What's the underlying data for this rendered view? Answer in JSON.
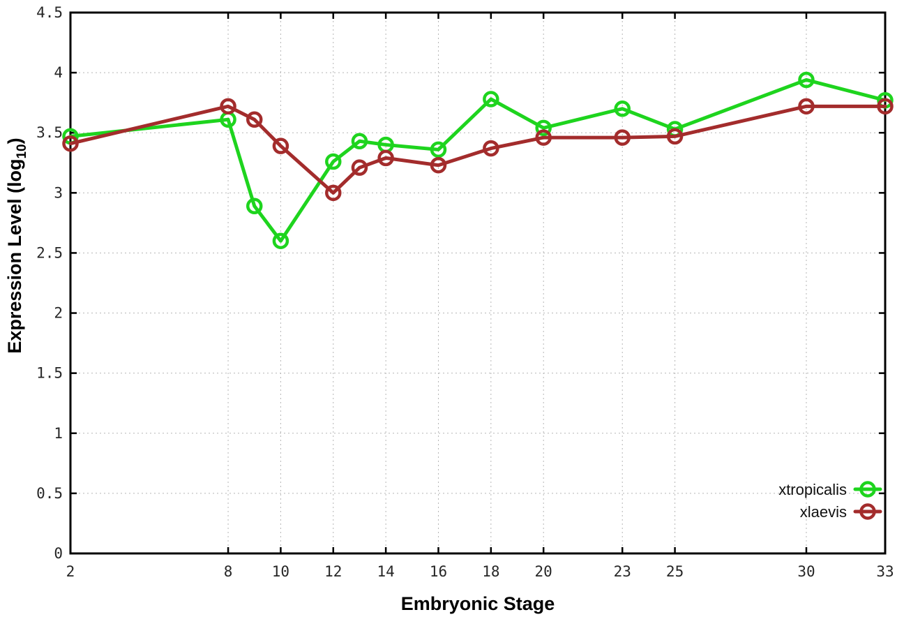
{
  "chart_data": {
    "type": "line",
    "title": "",
    "xlabel": "Embryonic Stage",
    "ylabel": "Expression Level (log10)",
    "ylabel_parts": {
      "prefix": "Expression Level (log",
      "sub": "10",
      "suffix": ")"
    },
    "x": [
      2,
      8,
      9,
      10,
      12,
      13,
      14,
      16,
      18,
      20,
      23,
      25,
      30,
      33
    ],
    "xticks": [
      2,
      8,
      10,
      12,
      14,
      16,
      18,
      20,
      23,
      25,
      30,
      33
    ],
    "xtick_labels": [
      "2",
      "8",
      "10",
      "12",
      "14",
      "16",
      "18",
      "20",
      "23",
      "25",
      "30",
      "33"
    ],
    "yticks": [
      0,
      0.5,
      1,
      1.5,
      2,
      2.5,
      3,
      3.5,
      4,
      4.5
    ],
    "ytick_labels": [
      "0",
      "0.5",
      "1",
      "1.5",
      "2",
      "2.5",
      "3",
      "3.5",
      "4",
      "4.5"
    ],
    "xlim": [
      2,
      33
    ],
    "ylim": [
      0,
      4.5
    ],
    "grid": true,
    "legend_position": "bottom-right",
    "marker": "open-circle",
    "series": [
      {
        "name": "xtropicalis",
        "color": "#1ed41e",
        "values": [
          3.47,
          3.61,
          2.89,
          2.6,
          3.26,
          3.43,
          3.4,
          3.36,
          3.78,
          3.54,
          3.7,
          3.53,
          3.94,
          3.77
        ]
      },
      {
        "name": "xlaevis",
        "color": "#a32c2c",
        "values": [
          3.41,
          3.72,
          3.61,
          3.39,
          3.0,
          3.21,
          3.29,
          3.23,
          3.37,
          3.46,
          3.46,
          3.47,
          3.72,
          3.72
        ]
      }
    ],
    "style": {
      "grid_color": "#b5b5b5",
      "border_color": "#000000",
      "tick_label_color": "#262626",
      "line_width": 5,
      "marker_radius": 9.5,
      "marker_stroke": 4.5
    }
  }
}
